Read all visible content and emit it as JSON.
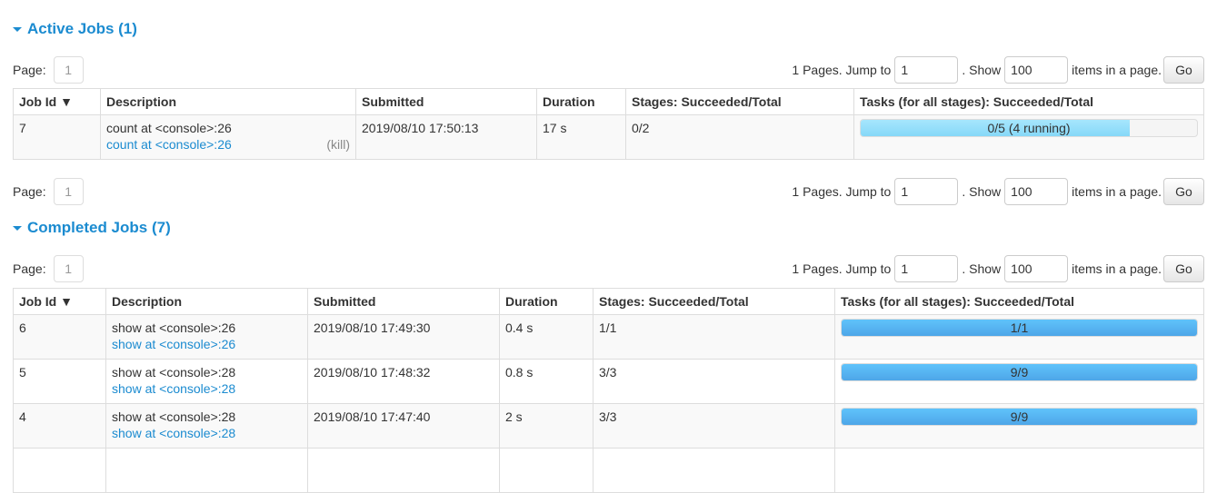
{
  "active": {
    "title": "Active Jobs (1)",
    "page_label": "Page:",
    "page": "1",
    "pages_text": "1 Pages. Jump to",
    "jump": "1",
    "show_text": ". Show",
    "show": "100",
    "items_text": "items in a page.",
    "go": "Go",
    "headers": [
      "Job Id ▼",
      "Description",
      "Submitted",
      "Duration",
      "Stages: Succeeded/Total",
      "Tasks (for all stages): Succeeded/Total"
    ],
    "rows": [
      {
        "id": "7",
        "desc": "count at <console>:26",
        "link": "count at <console>:26",
        "kill": "(kill)",
        "submitted": "2019/08/10 17:50:13",
        "duration": "17 s",
        "stages": "0/2",
        "tasks": "0/5 (4 running)",
        "succeeded_pct": 0,
        "running_pct": 80
      }
    ]
  },
  "bottom_pager": {
    "page_label": "Page:",
    "page": "1",
    "pages_text": "1 Pages. Jump to",
    "jump": "1",
    "show_text": ". Show",
    "show": "100",
    "items_text": "items in a page.",
    "go": "Go"
  },
  "completed": {
    "title": "Completed Jobs (7)",
    "page_label": "Page:",
    "page": "1",
    "pages_text": "1 Pages. Jump to",
    "jump": "1",
    "show_text": ". Show",
    "show": "100",
    "items_text": "items in a page.",
    "go": "Go",
    "headers": [
      "Job Id ▼",
      "Description",
      "Submitted",
      "Duration",
      "Stages: Succeeded/Total",
      "Tasks (for all stages): Succeeded/Total"
    ],
    "rows": [
      {
        "id": "6",
        "desc": "show at <console>:26",
        "link": "show at <console>:26",
        "submitted": "2019/08/10 17:49:30",
        "duration": "0.4 s",
        "stages": "1/1",
        "tasks": "1/1",
        "succeeded_pct": 100
      },
      {
        "id": "5",
        "desc": "show at <console>:28",
        "link": "show at <console>:28",
        "submitted": "2019/08/10 17:48:32",
        "duration": "0.8 s",
        "stages": "3/3",
        "tasks": "9/9",
        "succeeded_pct": 100
      },
      {
        "id": "4",
        "desc": "show at <console>:28",
        "link": "show at <console>:28",
        "submitted": "2019/08/10 17:47:40",
        "duration": "2 s",
        "stages": "3/3",
        "tasks": "9/9",
        "succeeded_pct": 100
      }
    ]
  },
  "colors": {
    "accent": "#1b8bd0",
    "bar_done": "#5fc3fb",
    "bar_running": "#a6e6fd"
  }
}
